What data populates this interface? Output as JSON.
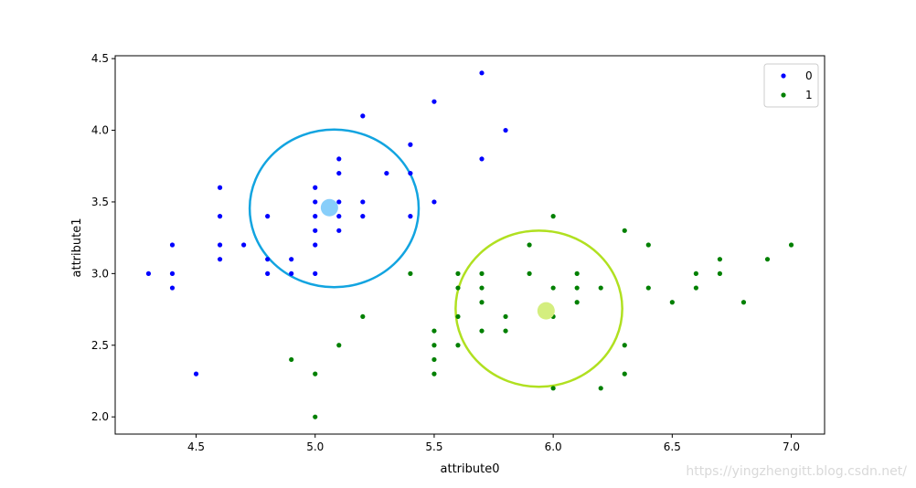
{
  "chart_data": {
    "type": "scatter",
    "xlabel": "attribute0",
    "ylabel": "attribute1",
    "xlim": [
      4.16,
      7.14
    ],
    "ylim": [
      1.88,
      4.52
    ],
    "xticks": [
      "4.5",
      "5.0",
      "5.5",
      "6.0",
      "6.5",
      "7.0"
    ],
    "yticks": [
      "2.0",
      "2.5",
      "3.0",
      "3.5",
      "4.0",
      "4.5"
    ],
    "legend_position": "top-right",
    "series": [
      {
        "name": "0",
        "color": "#0000ff",
        "points": [
          [
            4.3,
            3.0
          ],
          [
            4.4,
            3.2
          ],
          [
            4.4,
            3.0
          ],
          [
            4.4,
            2.9
          ],
          [
            4.5,
            2.3
          ],
          [
            4.6,
            3.6
          ],
          [
            4.6,
            3.4
          ],
          [
            4.6,
            3.2
          ],
          [
            4.6,
            3.1
          ],
          [
            4.7,
            3.2
          ],
          [
            4.8,
            3.4
          ],
          [
            4.8,
            3.1
          ],
          [
            4.8,
            3.0
          ],
          [
            4.9,
            3.1
          ],
          [
            4.9,
            3.0
          ],
          [
            5.0,
            3.6
          ],
          [
            5.0,
            3.5
          ],
          [
            5.0,
            3.4
          ],
          [
            5.0,
            3.3
          ],
          [
            5.0,
            3.2
          ],
          [
            5.0,
            3.0
          ],
          [
            5.1,
            3.8
          ],
          [
            5.1,
            3.7
          ],
          [
            5.1,
            3.5
          ],
          [
            5.1,
            3.4
          ],
          [
            5.1,
            3.3
          ],
          [
            5.2,
            4.1
          ],
          [
            5.2,
            3.5
          ],
          [
            5.2,
            3.4
          ],
          [
            5.3,
            3.7
          ],
          [
            5.4,
            3.9
          ],
          [
            5.4,
            3.7
          ],
          [
            5.4,
            3.4
          ],
          [
            5.5,
            4.2
          ],
          [
            5.5,
            3.5
          ],
          [
            5.7,
            4.4
          ],
          [
            5.7,
            3.8
          ],
          [
            5.8,
            4.0
          ]
        ]
      },
      {
        "name": "1",
        "color": "#008000",
        "points": [
          [
            4.9,
            2.4
          ],
          [
            5.0,
            2.3
          ],
          [
            5.0,
            2.0
          ],
          [
            5.1,
            2.5
          ],
          [
            5.2,
            2.7
          ],
          [
            5.4,
            3.0
          ],
          [
            5.5,
            2.6
          ],
          [
            5.5,
            2.5
          ],
          [
            5.5,
            2.4
          ],
          [
            5.5,
            2.3
          ],
          [
            5.6,
            3.0
          ],
          [
            5.6,
            2.9
          ],
          [
            5.6,
            2.7
          ],
          [
            5.6,
            2.5
          ],
          [
            5.7,
            3.0
          ],
          [
            5.7,
            2.9
          ],
          [
            5.7,
            2.8
          ],
          [
            5.7,
            2.6
          ],
          [
            5.8,
            2.7
          ],
          [
            5.8,
            2.6
          ],
          [
            5.9,
            3.2
          ],
          [
            5.9,
            3.0
          ],
          [
            6.0,
            3.4
          ],
          [
            6.0,
            2.9
          ],
          [
            6.0,
            2.7
          ],
          [
            6.0,
            2.2
          ],
          [
            6.1,
            3.0
          ],
          [
            6.1,
            2.9
          ],
          [
            6.1,
            2.8
          ],
          [
            6.2,
            2.9
          ],
          [
            6.2,
            2.2
          ],
          [
            6.3,
            3.3
          ],
          [
            6.3,
            2.5
          ],
          [
            6.3,
            2.3
          ],
          [
            6.4,
            3.2
          ],
          [
            6.4,
            2.9
          ],
          [
            6.5,
            2.8
          ],
          [
            6.6,
            3.0
          ],
          [
            6.6,
            2.9
          ],
          [
            6.7,
            3.1
          ],
          [
            6.7,
            3.0
          ],
          [
            6.8,
            2.8
          ],
          [
            6.9,
            3.1
          ],
          [
            7.0,
            3.2
          ]
        ]
      }
    ],
    "centroids": [
      {
        "x": 5.06,
        "y": 3.46,
        "color": "#87cefa",
        "ring_color": "#12a4e0",
        "rx": 0.355,
        "ry": 0.55,
        "cx": 5.08,
        "cy": 3.455
      },
      {
        "x": 5.97,
        "y": 2.74,
        "color": "#d4ee7f",
        "ring_color": "#b0e020",
        "rx": 0.35,
        "ry": 0.545,
        "cx": 5.94,
        "cy": 2.755
      }
    ]
  },
  "watermark": "https://yingzhengitt.blog.csdn.net/"
}
